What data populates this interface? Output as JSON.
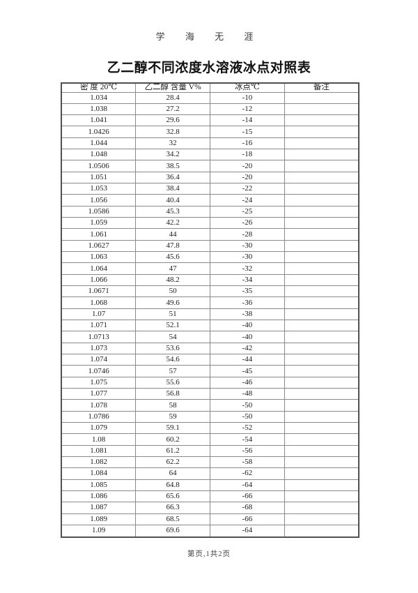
{
  "page": {
    "watermark": "学 海 无 涯",
    "title": "乙二醇不同浓度水溶液冰点对照表",
    "footer": "第页,1共2页"
  },
  "table": {
    "headers": [
      "密 度 20℃",
      "乙二醇 含量 V%",
      "冰点℃",
      "备注"
    ],
    "rows": [
      [
        "1.034",
        "28.4",
        "-10",
        ""
      ],
      [
        "1.038",
        "27.2",
        "-12",
        ""
      ],
      [
        "1.041",
        "29.6",
        "-14",
        ""
      ],
      [
        "1.0426",
        "32.8",
        "-15",
        ""
      ],
      [
        "1.044",
        "32",
        "-16",
        ""
      ],
      [
        "1.048",
        "34.2",
        "-18",
        ""
      ],
      [
        "1.0506",
        "38.5",
        "-20",
        ""
      ],
      [
        "1.051",
        "36.4",
        "-20",
        ""
      ],
      [
        "1.053",
        "38.4",
        "-22",
        ""
      ],
      [
        "1.056",
        "40.4",
        "-24",
        ""
      ],
      [
        "1.0586",
        "45.3",
        "-25",
        ""
      ],
      [
        "1.059",
        "42.2",
        "-26",
        ""
      ],
      [
        "1.061",
        "44",
        "-28",
        ""
      ],
      [
        "1.0627",
        "47.8",
        "-30",
        ""
      ],
      [
        "1.063",
        "45.6",
        "-30",
        ""
      ],
      [
        "1.064",
        "47",
        "-32",
        ""
      ],
      [
        "1.066",
        "48.2",
        "-34",
        ""
      ],
      [
        "1.0671",
        "50",
        "-35",
        ""
      ],
      [
        "1.068",
        "49.6",
        "-36",
        ""
      ],
      [
        "1.07",
        "51",
        "-38",
        ""
      ],
      [
        "1.071",
        "52.1",
        "-40",
        ""
      ],
      [
        "1.0713",
        "54",
        "-40",
        ""
      ],
      [
        "1.073",
        "53.6",
        "-42",
        ""
      ],
      [
        "1.074",
        "54.6",
        "-44",
        ""
      ],
      [
        "1.0746",
        "57",
        "-45",
        ""
      ],
      [
        "1.075",
        "55.6",
        "-46",
        ""
      ],
      [
        "1.077",
        "56.8",
        "-48",
        ""
      ],
      [
        "1.078",
        "58",
        "-50",
        ""
      ],
      [
        "1.0786",
        "59",
        "-50",
        ""
      ],
      [
        "1.079",
        "59.1",
        "-52",
        ""
      ],
      [
        "1.08",
        "60.2",
        "-54",
        ""
      ],
      [
        "1.081",
        "61.2",
        "-56",
        ""
      ],
      [
        "1.082",
        "62.2",
        "-58",
        ""
      ],
      [
        "1.084",
        "64",
        "-62",
        ""
      ],
      [
        "1.085",
        "64.8",
        "-64",
        ""
      ],
      [
        "1.086",
        "65.6",
        "-66",
        ""
      ],
      [
        "1.087",
        "66.3",
        "-68",
        ""
      ],
      [
        "1.089",
        "68.5",
        "-66",
        ""
      ],
      [
        "1.09",
        "69.6",
        "-64",
        ""
      ]
    ]
  }
}
